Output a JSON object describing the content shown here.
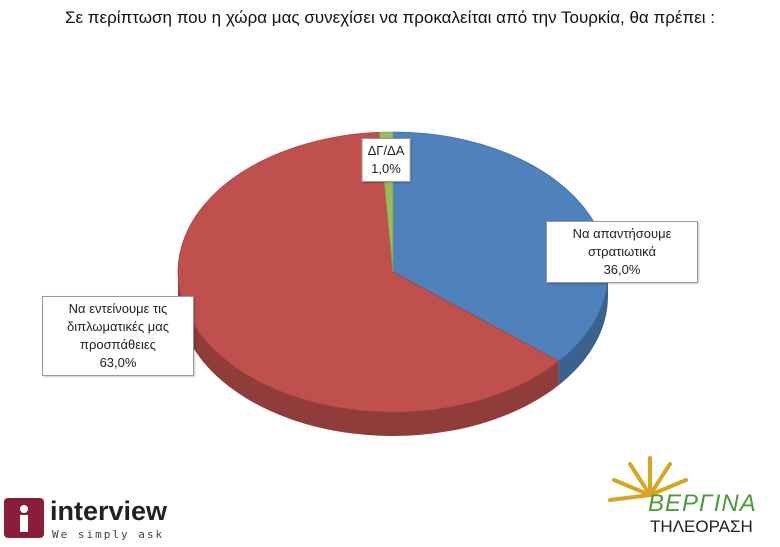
{
  "chart_data": {
    "type": "pie",
    "title": "Σε περίπτωση που η χώρα μας συνεχίσει να προκαλείται από την Τουρκία, θα πρέπει :",
    "categories": [
      "Να απαντήσουμε στρατιωτικά",
      "Να εντείνουμε τις διπλωματικές μας προσπάθειες",
      "ΔΓ/ΔΑ"
    ],
    "values": [
      36,
      63,
      1
    ],
    "value_labels": [
      "36,0%",
      "63,0%",
      "1,0%"
    ],
    "colors": [
      "#4f81bd",
      "#c0504d",
      "#9bbb59"
    ]
  },
  "branding": {
    "left": {
      "name": "interview",
      "tagline": "We simply ask"
    },
    "right": {
      "name": "ΒΕΡΓΙΝΑ",
      "subtitle": "ΤΗΛΕΟΡΑΣΗ"
    }
  }
}
